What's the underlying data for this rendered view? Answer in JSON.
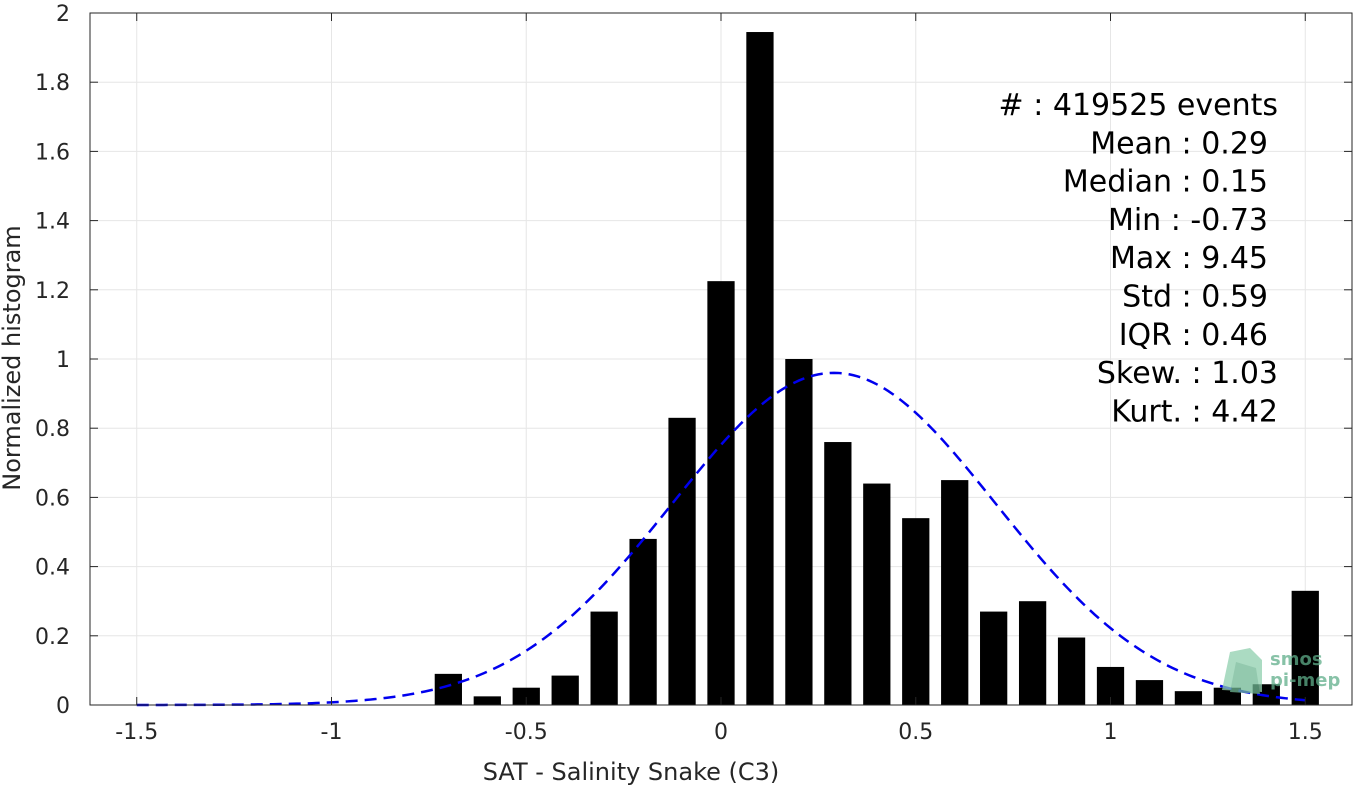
{
  "chart_data": {
    "type": "bar",
    "xlabel": "SAT - Salinity Snake (C3)",
    "ylabel": "Normalized histogram",
    "xlim": [
      -1.62,
      1.62
    ],
    "ylim": [
      0,
      2
    ],
    "xticks": [
      -1.5,
      -1,
      -0.5,
      0,
      0.5,
      1,
      1.5
    ],
    "xtick_labels": [
      "-1.5",
      "-1",
      "-0.5",
      "0",
      "0.5",
      "1",
      "1.5"
    ],
    "yticks": [
      0,
      0.2,
      0.4,
      0.6,
      0.8,
      1,
      1.2,
      1.4,
      1.6,
      1.8,
      2
    ],
    "ytick_labels": [
      "0",
      "0.2",
      "0.4",
      "0.6",
      "0.8",
      "1",
      "1.2",
      "1.4",
      "1.6",
      "1.8",
      "2"
    ],
    "grid": true,
    "bar_width": 0.07,
    "bars": {
      "x": [
        -0.7,
        -0.6,
        -0.5,
        -0.4,
        -0.3,
        -0.2,
        -0.1,
        0,
        0.1,
        0.2,
        0.3,
        0.4,
        0.5,
        0.6,
        0.7,
        0.8,
        0.9,
        1.0,
        1.1,
        1.2,
        1.3,
        1.4,
        1.5
      ],
      "values": [
        0.09,
        0.025,
        0.05,
        0.085,
        0.27,
        0.48,
        0.83,
        1.225,
        1.945,
        1.0,
        0.76,
        0.64,
        0.54,
        0.65,
        0.27,
        0.3,
        0.195,
        0.11,
        0.072,
        0.04,
        0.05,
        0.06,
        0.33
      ],
      "color": "#000000"
    },
    "fit_curve": {
      "type": "gaussian",
      "mean": 0.29,
      "std": 0.415,
      "peak": 0.96,
      "x_range": [
        -1.5,
        1.5
      ],
      "color": "#0000ee",
      "style": "dashed"
    },
    "stats": [
      "#  : 419525 events",
      "Mean : 0.29",
      "Median : 0.15",
      "Min : -0.73",
      "Max : 9.45",
      "Std : 0.59",
      "IQR : 0.46",
      "Skew. : 1.03",
      "Kurt. : 4.42"
    ],
    "watermark": [
      "smos",
      "pi-mep"
    ]
  }
}
